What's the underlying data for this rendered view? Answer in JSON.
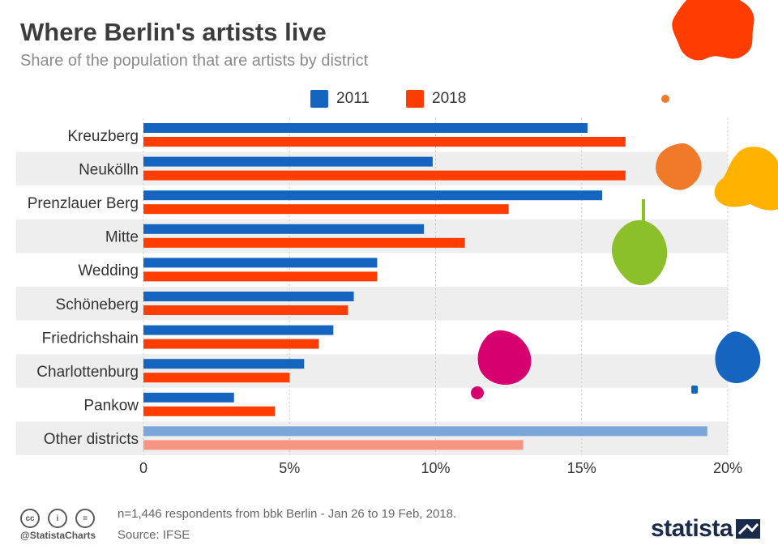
{
  "header": {
    "title": "Where Berlin's artists live",
    "subtitle": "Share of the population that are artists by district"
  },
  "colors": {
    "series_2011": "#1565c0",
    "series_2018": "#ff3d00",
    "series_2011_light": "#7aa6d9",
    "series_2018_light": "#f89582",
    "band": "#eeeeee",
    "grid": "#c8c8c8"
  },
  "chart_data": {
    "type": "bar",
    "orientation": "horizontal",
    "title": "Where Berlin's artists live",
    "subtitle": "Share of the population that are artists by district",
    "categories": [
      "Kreuzberg",
      "Neukölln",
      "Prenzlauer Berg",
      "Mitte",
      "Wedding",
      "Schöneberg",
      "Friedrichshain",
      "Charlottenburg",
      "Pankow",
      "Other districts"
    ],
    "series": [
      {
        "name": "2011",
        "values": [
          15.2,
          9.9,
          15.7,
          9.6,
          8.0,
          7.2,
          6.5,
          5.5,
          3.1,
          19.3
        ]
      },
      {
        "name": "2018",
        "values": [
          16.5,
          16.5,
          12.5,
          11.0,
          8.0,
          7.0,
          6.0,
          5.0,
          4.5,
          13.0
        ]
      }
    ],
    "xlim": [
      0,
      20
    ],
    "xticks": [
      "0",
      "5%",
      "10%",
      "15%",
      "20%"
    ],
    "grid": true,
    "legend_position": "top",
    "highlight_last_category_lighter": true
  },
  "footer": {
    "cc_icons": [
      "cc",
      "by",
      "nd"
    ],
    "cc_labels": [
      "cc",
      "i",
      "="
    ],
    "handle": "@StatistaCharts",
    "note": "n=1,446 respondents from bbk Berlin - Jan 26 to 19 Feb, 2018.",
    "source": "Source: IFSE",
    "logo": "statista"
  },
  "decorations": {
    "paint_splash_colors": [
      "#ff3d00",
      "#f07a2a",
      "#ffb300",
      "#8bc02a",
      "#d6006f",
      "#1565c0"
    ]
  }
}
